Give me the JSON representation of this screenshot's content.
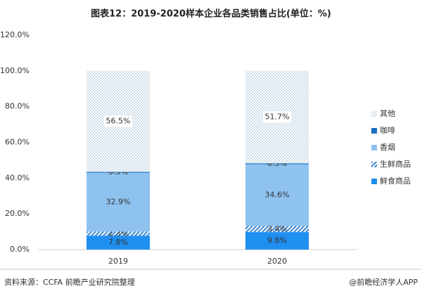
{
  "chart_data": {
    "type": "stacked_bar",
    "title": "图表12：2019-2020样本企业各品类销售占比(单位：%)",
    "categories": [
      "2019",
      "2020"
    ],
    "series": [
      {
        "name": "鲜食商品",
        "color": "#1f8ff0",
        "pattern": "solid",
        "values": [
          7.8,
          9.8
        ],
        "value_labels": [
          "7.8%",
          "9.8%"
        ]
      },
      {
        "name": "生鲜商品",
        "color": "#3a86d0",
        "pattern": "hatch",
        "values": [
          2.3,
          3.4
        ],
        "value_labels": [
          "2.3%",
          "3.4%"
        ]
      },
      {
        "name": "香烟",
        "color": "#8ec3f0",
        "pattern": "solid",
        "values": [
          32.9,
          34.6
        ],
        "value_labels": [
          "32.9%",
          "34.6%"
        ]
      },
      {
        "name": "咖啡",
        "color": "#1b6fbf",
        "pattern": "solid",
        "values": [
          0.5,
          0.5
        ],
        "value_labels": [
          "0.5%",
          "0.5%"
        ]
      },
      {
        "name": "其他",
        "color": "#7fa8c8",
        "pattern": "dots",
        "values": [
          56.5,
          51.7
        ],
        "value_labels": [
          "56.5%",
          "51.7%"
        ]
      }
    ],
    "ylim": [
      0,
      120
    ],
    "yticks": [
      {
        "value": 0,
        "label": "0.0%"
      },
      {
        "value": 20,
        "label": "20.0%"
      },
      {
        "value": 40,
        "label": "40.0%"
      },
      {
        "value": 60,
        "label": "60.0%"
      },
      {
        "value": 80,
        "label": "80.0%"
      },
      {
        "value": 100,
        "label": "100.0%"
      },
      {
        "value": 120,
        "label": "120.0%"
      }
    ],
    "source": "资料来源：CCFA 前瞻产业研究院整理",
    "credit": "@前瞻经济学人APP"
  }
}
